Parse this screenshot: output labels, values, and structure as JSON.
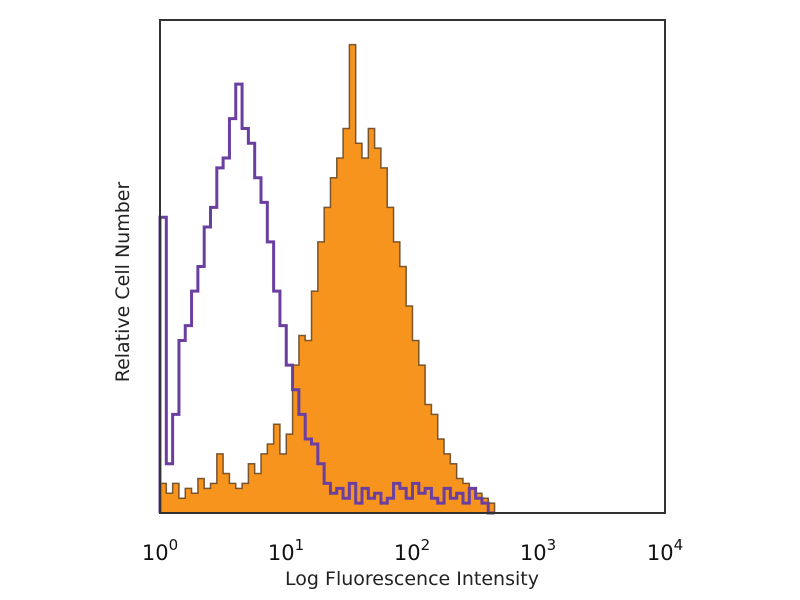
{
  "chart_data": {
    "type": "area",
    "title": "",
    "xlabel": "Log Fluorescence Intensity",
    "ylabel": "Relative Cell Number",
    "x_scale": "log",
    "xlim": [
      1,
      10000
    ],
    "ylim": [
      0,
      100
    ],
    "grid": false,
    "x_ticks": [
      {
        "base": "10",
        "exp": "0"
      },
      {
        "base": "10",
        "exp": "1"
      },
      {
        "base": "10",
        "exp": "2"
      },
      {
        "base": "10",
        "exp": "3"
      },
      {
        "base": "10",
        "exp": "4"
      }
    ],
    "bin_log10_step": 0.05,
    "series": [
      {
        "style": "outline",
        "color": "#6a3fa0",
        "x_log10_start": 0,
        "values": [
          60,
          10,
          20,
          35,
          38,
          45,
          50,
          58,
          62,
          70,
          72,
          80,
          87,
          78,
          75,
          68,
          63,
          55,
          45,
          38,
          30,
          25,
          20,
          15,
          14,
          10,
          6,
          4,
          5,
          3,
          6,
          2,
          5,
          3,
          4,
          2,
          3,
          6,
          5,
          3,
          6,
          4,
          5,
          3,
          2,
          5,
          3,
          4,
          2,
          5,
          3,
          2,
          0
        ]
      },
      {
        "style": "filled",
        "color": "#f7941d",
        "edge_color": "#5a3a1a",
        "x_log10_start": 0,
        "values": [
          6,
          4,
          6,
          3,
          5,
          4,
          7,
          5,
          6,
          12,
          8,
          6,
          5,
          6,
          10,
          8,
          12,
          14,
          18,
          12,
          16,
          30,
          36,
          35,
          45,
          55,
          62,
          68,
          72,
          78,
          95,
          75,
          72,
          78,
          74,
          70,
          62,
          55,
          50,
          42,
          35,
          30,
          22,
          20,
          15,
          12,
          10,
          7,
          6,
          5,
          4,
          3,
          2,
          0
        ]
      }
    ]
  }
}
